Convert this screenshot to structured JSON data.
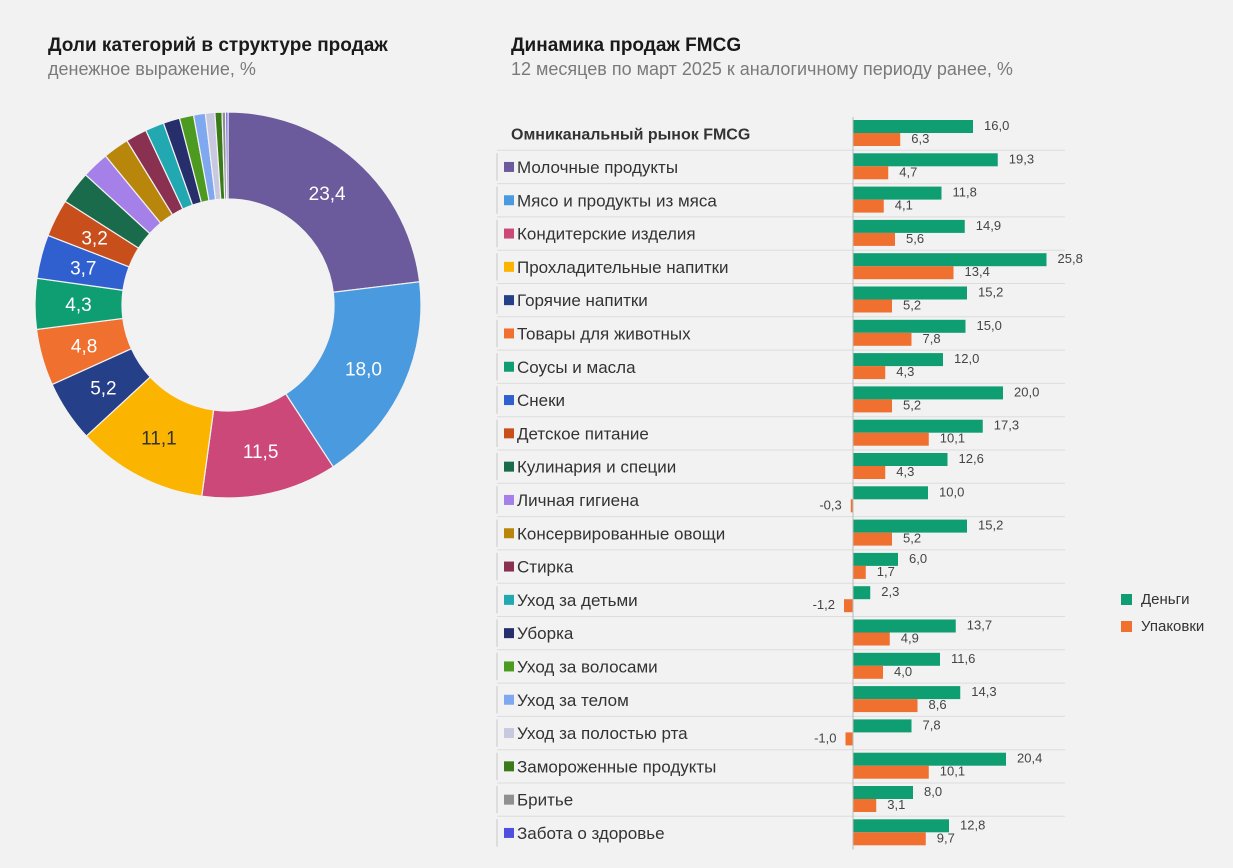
{
  "left": {
    "title": "Доли категорий в структуре продаж",
    "subtitle": "денежное выражение, %"
  },
  "right": {
    "title": "Динамика продаж FMCG",
    "subtitle": "12 месяцев по март 2025 к аналогичному периоду ранее, %"
  },
  "legend": [
    {
      "name": "Деньги",
      "color": "#0f9d72"
    },
    {
      "name": "Упаковки",
      "color": "#f07030"
    }
  ],
  "chart_data": [
    {
      "type": "pie",
      "title": "Доли категорий в структуре продаж",
      "subtitle": "денежное выражение, %",
      "slices": [
        {
          "category": "Молочные продукты",
          "value": 23.4,
          "label": "23,4",
          "color": "#6b5a9c"
        },
        {
          "category": "Мясо и продукты из мяса",
          "value": 18.0,
          "label": "18,0",
          "color": "#4a9ae0"
        },
        {
          "category": "Кондитерские изделия",
          "value": 11.5,
          "label": "11,5",
          "color": "#cc4878"
        },
        {
          "category": "Прохладительные напитки",
          "value": 11.1,
          "label": "11,1",
          "color": "#fbb400"
        },
        {
          "category": "Горячие напитки",
          "value": 5.2,
          "label": "5,2",
          "color": "#253f88"
        },
        {
          "category": "Товары для животных",
          "value": 4.8,
          "label": "4,8",
          "color": "#f07030"
        },
        {
          "category": "Соусы и масла",
          "value": 4.3,
          "label": "4,3",
          "color": "#0f9d72"
        },
        {
          "category": "Снеки",
          "value": 3.7,
          "label": "3,7",
          "color": "#3060d0"
        },
        {
          "category": "Детское питание",
          "value": 3.2,
          "label": "3,2",
          "color": "#c84e1c"
        },
        {
          "category": "Кулинария и специи",
          "value": 2.8,
          "label": "",
          "color": "#1a6a4c"
        },
        {
          "category": "Личная гигиена",
          "value": 2.3,
          "label": "",
          "color": "#a480e8"
        },
        {
          "category": "Консервированные овощи",
          "value": 2.2,
          "label": "",
          "color": "#b8860b"
        },
        {
          "category": "Стирка",
          "value": 1.8,
          "label": "",
          "color": "#8a3050"
        },
        {
          "category": "Уход за детьми",
          "value": 1.6,
          "label": "",
          "color": "#22a8b0"
        },
        {
          "category": "Уборка",
          "value": 1.4,
          "label": "",
          "color": "#262e6c"
        },
        {
          "category": "Уход за волосами",
          "value": 1.2,
          "label": "",
          "color": "#4c9a20"
        },
        {
          "category": "Уход за телом",
          "value": 1.0,
          "label": "",
          "color": "#80a8f0"
        },
        {
          "category": "Уход за полостью рта",
          "value": 0.8,
          "label": "",
          "color": "#c8c8e0"
        },
        {
          "category": "Замороженные продукты",
          "value": 0.6,
          "label": "",
          "color": "#3a7a18"
        },
        {
          "category": "Бритье",
          "value": 0.3,
          "label": "",
          "color": "#909090"
        },
        {
          "category": "Забота о здоровье",
          "value": 0.2,
          "label": "",
          "color": "#5050e0"
        }
      ]
    },
    {
      "type": "bar",
      "orientation": "horizontal",
      "title": "Динамика продаж FMCG",
      "subtitle": "12 месяцев по март 2025 к аналогичному периоду ранее, %",
      "legend_position": "right",
      "series": [
        {
          "name": "Деньги",
          "color": "#0f9d72",
          "values": [
            16.0,
            19.3,
            11.8,
            14.9,
            25.8,
            15.2,
            15.0,
            12.0,
            20.0,
            17.3,
            12.6,
            10.0,
            15.2,
            6.0,
            2.3,
            13.7,
            11.6,
            14.3,
            7.8,
            20.4,
            8.0,
            12.8
          ],
          "labels": [
            "16,0",
            "19,3",
            "11,8",
            "14,9",
            "25,8",
            "15,2",
            "15,0",
            "12,0",
            "20,0",
            "17,3",
            "12,6",
            "10,0",
            "15,2",
            "6,0",
            "2,3",
            "13,7",
            "11,6",
            "14,3",
            "7,8",
            "20,4",
            "8,0",
            "12,8"
          ]
        },
        {
          "name": "Упаковки",
          "color": "#f07030",
          "values": [
            6.3,
            4.7,
            4.1,
            5.6,
            13.4,
            5.2,
            7.8,
            4.3,
            5.2,
            10.1,
            4.3,
            -0.3,
            5.2,
            1.7,
            -1.2,
            4.9,
            4.0,
            8.6,
            -1.0,
            10.1,
            3.1,
            9.7
          ],
          "labels": [
            "6,3",
            "4,7",
            "4,1",
            "5,6",
            "13,4",
            "5,2",
            "7,8",
            "4,3",
            "5,2",
            "10,1",
            "4,3",
            "-0,3",
            "5,2",
            "1,7",
            "-1,2",
            "4,9",
            "4,0",
            "8,6",
            "-1,0",
            "10,1",
            "3,1",
            "9,7"
          ]
        }
      ],
      "categories": [
        {
          "name": "Омниканальный рынок FMCG",
          "bold": true,
          "color": ""
        },
        {
          "name": "Молочные продукты",
          "color": "#6b5a9c"
        },
        {
          "name": "Мясо и продукты из мяса",
          "color": "#4a9ae0"
        },
        {
          "name": "Кондитерские изделия",
          "color": "#cc4878"
        },
        {
          "name": "Прохладительные напитки",
          "color": "#fbb400"
        },
        {
          "name": "Горячие напитки",
          "color": "#253f88"
        },
        {
          "name": "Товары для животных",
          "color": "#f07030"
        },
        {
          "name": "Соусы и масла",
          "color": "#0f9d72"
        },
        {
          "name": "Снеки",
          "color": "#3060d0"
        },
        {
          "name": "Детское питание",
          "color": "#c84e1c"
        },
        {
          "name": "Кулинария и специи",
          "color": "#1a6a4c"
        },
        {
          "name": "Личная гигиена",
          "color": "#a480e8"
        },
        {
          "name": "Консервированные овощи",
          "color": "#b8860b"
        },
        {
          "name": "Стирка",
          "color": "#8a3050"
        },
        {
          "name": "Уход за детьми",
          "color": "#22a8b0"
        },
        {
          "name": "Уборка",
          "color": "#262e6c"
        },
        {
          "name": "Уход за волосами",
          "color": "#4c9a20"
        },
        {
          "name": "Уход за телом",
          "color": "#80a8f0"
        },
        {
          "name": "Уход за полостью рта",
          "color": "#c8c8e0"
        },
        {
          "name": "Замороженные продукты",
          "color": "#3a7a18"
        },
        {
          "name": "Бритье",
          "color": "#909090"
        },
        {
          "name": "Забота о здоровье",
          "color": "#5050e0"
        }
      ]
    }
  ]
}
